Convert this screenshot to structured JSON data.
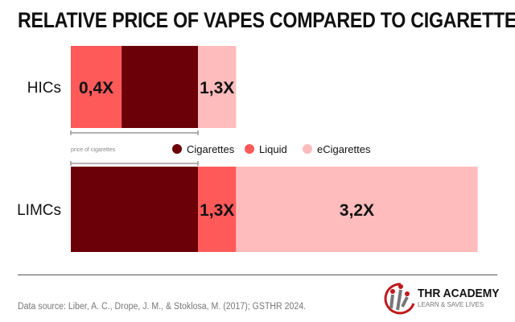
{
  "chart_data": {
    "type": "bar",
    "orientation": "horizontal-stacked",
    "title": "RELATIVE PRICE OF VAPES COMPARED TO CIGARETTES",
    "categories": [
      "HICs",
      "LIMCs"
    ],
    "series_colors": {
      "Cigarettes": "#6b0009",
      "Liquid": "#ff5a5a",
      "eCigarettes": "#ffbcbc"
    },
    "legend": [
      "Cigarettes",
      "Liquid",
      "eCigarettes"
    ],
    "legend_placement": "center",
    "reference_label": "price of cigarettes",
    "rows": [
      {
        "category": "HICs",
        "segments": [
          {
            "series": "Cigarettes",
            "start": 0,
            "end": 1.0,
            "label": ""
          },
          {
            "series": "Liquid",
            "start": 0,
            "end": 0.4,
            "label": "0,4X"
          },
          {
            "series": "eCigarettes",
            "start": 1.0,
            "end": 1.3,
            "label": "1,3X"
          }
        ]
      },
      {
        "category": "LIMCs",
        "segments": [
          {
            "series": "Cigarettes",
            "start": 0,
            "end": 1.0,
            "label": ""
          },
          {
            "series": "Liquid",
            "start": 1.0,
            "end": 1.3,
            "label": "1,3X"
          },
          {
            "series": "eCigarettes",
            "start": 1.3,
            "end": 3.2,
            "label": "3,2X"
          }
        ]
      }
    ]
  },
  "footer": {
    "source": "Data source: Liber, A. C., Drope, J. M., & Stoklosa, M. (2017); GSTHR 2024.",
    "logo_name": "THR ACADEMY",
    "logo_tagline": "LEARN & SAVE LIVES"
  }
}
